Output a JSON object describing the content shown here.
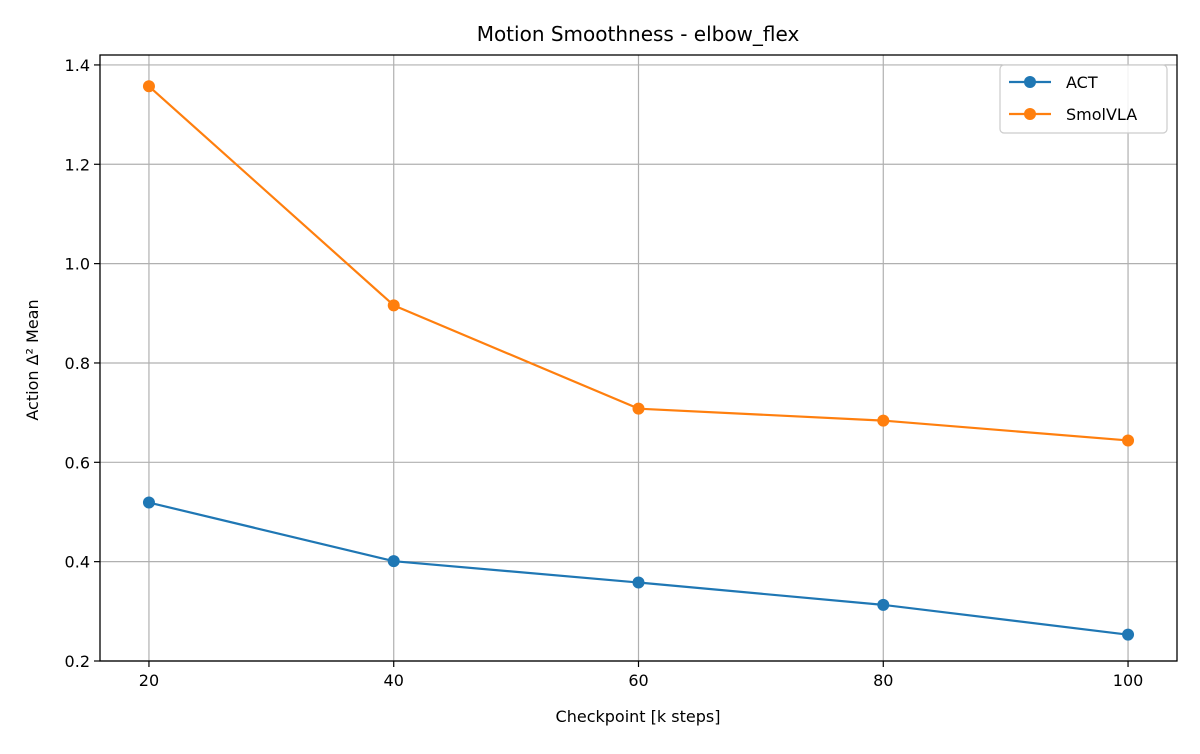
{
  "chart_data": {
    "type": "line",
    "title": "Motion Smoothness - elbow_flex",
    "xlabel": "Checkpoint [k steps]",
    "ylabel": "Action Δ² Mean",
    "x": [
      20,
      40,
      60,
      80,
      100
    ],
    "xticks": [
      20,
      40,
      60,
      80,
      100
    ],
    "xtick_labels": [
      "20",
      "40",
      "60",
      "80",
      "100"
    ],
    "yticks": [
      0.2,
      0.4,
      0.6,
      0.8,
      1.0,
      1.2,
      1.4
    ],
    "ytick_labels": [
      "0.2",
      "0.4",
      "0.6",
      "0.8",
      "1.0",
      "1.2",
      "1.4"
    ],
    "xlim": [
      16,
      104
    ],
    "ylim": [
      0.2,
      1.42
    ],
    "grid": true,
    "legend_position": "top-right",
    "series": [
      {
        "name": "ACT",
        "color": "#1f77b4",
        "values": [
          0.519,
          0.401,
          0.358,
          0.313,
          0.253
        ],
        "marker": "circle"
      },
      {
        "name": "SmolVLA",
        "color": "#ff7f0e",
        "values": [
          1.357,
          0.916,
          0.708,
          0.684,
          0.644
        ],
        "marker": "circle"
      }
    ]
  }
}
